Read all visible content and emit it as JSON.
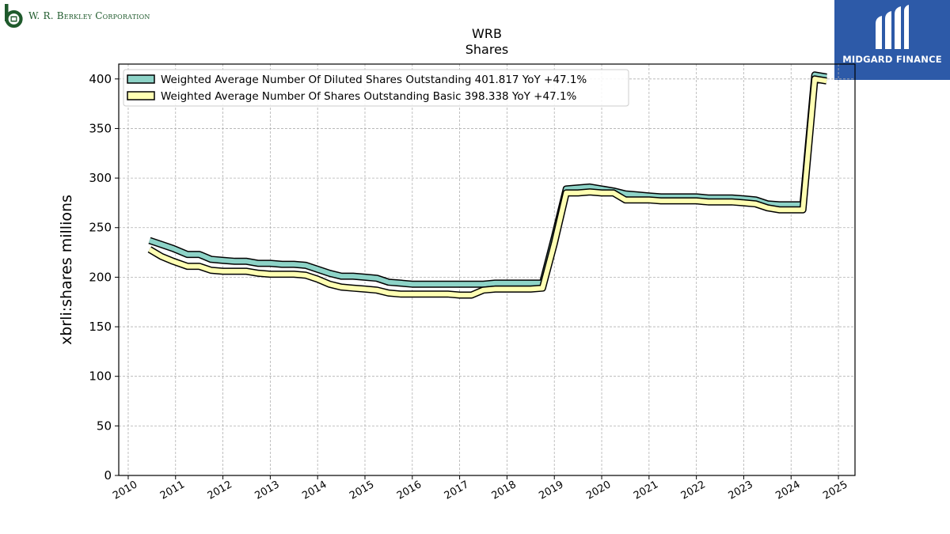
{
  "header": {
    "company_logo_text": "W. R. Berkley Corporation",
    "brand_text": "MIDGARD FINANCE"
  },
  "chart_data": {
    "type": "line",
    "title": "WRB",
    "subtitle": "Shares",
    "ylabel": "xbrli:shares millions",
    "xlabel": "",
    "ylim": [
      0,
      415
    ],
    "xlim": [
      2009.8,
      2025.35
    ],
    "grid": true,
    "legend_position": "top-left",
    "yticks": [
      0,
      50,
      100,
      150,
      200,
      250,
      300,
      350,
      400
    ],
    "xticks": [
      "2010",
      "2011",
      "2012",
      "2013",
      "2014",
      "2015",
      "2016",
      "2017",
      "2018",
      "2019",
      "2020",
      "2021",
      "2022",
      "2023",
      "2024",
      "2025"
    ],
    "series": [
      {
        "name": "Weighted Average Number Of Diluted Shares Outstanding",
        "legend_label": "Weighted Average Number Of Diluted Shares Outstanding  401.817 YoY +47.1%",
        "color": "#8dd3c7",
        "x": [
          2010.45,
          2010.7,
          2010.95,
          2011.25,
          2011.5,
          2011.75,
          2012.0,
          2012.25,
          2012.5,
          2012.75,
          2013.0,
          2013.25,
          2013.5,
          2013.75,
          2014.0,
          2014.25,
          2014.5,
          2014.75,
          2015.0,
          2015.25,
          2015.5,
          2015.75,
          2016.0,
          2016.25,
          2016.5,
          2016.75,
          2017.0,
          2017.25,
          2017.5,
          2017.75,
          2018.0,
          2018.25,
          2018.5,
          2018.75,
          2019.0,
          2019.25,
          2019.5,
          2019.75,
          2020.0,
          2020.25,
          2020.5,
          2020.75,
          2021.0,
          2021.25,
          2021.5,
          2021.75,
          2022.0,
          2022.25,
          2022.5,
          2022.75,
          2023.0,
          2023.25,
          2023.5,
          2023.75,
          2024.0,
          2024.25,
          2024.5,
          2024.75
        ],
        "y": [
          237,
          233,
          229,
          223,
          223,
          218,
          217,
          216,
          216,
          214,
          214,
          213,
          213,
          212,
          208,
          204,
          201,
          201,
          200,
          199,
          195,
          194,
          193,
          193,
          193,
          193,
          193,
          193,
          193,
          194,
          194,
          194,
          194,
          194,
          240,
          289,
          290,
          291,
          289,
          287,
          284,
          283,
          282,
          281,
          281,
          281,
          281,
          280,
          280,
          280,
          279,
          278,
          274,
          273,
          273,
          273,
          404,
          402
        ]
      },
      {
        "name": "Weighted Average Number Of Shares Outstanding Basic",
        "legend_label": "Weighted Average Number Of Shares Outstanding Basic  398.338 YoY +47.1%",
        "color": "#ffffb3",
        "x": [
          2010.45,
          2010.7,
          2010.95,
          2011.25,
          2011.5,
          2011.75,
          2012.0,
          2012.25,
          2012.5,
          2012.75,
          2013.0,
          2013.25,
          2013.5,
          2013.75,
          2014.0,
          2014.25,
          2014.5,
          2014.75,
          2015.0,
          2015.25,
          2015.5,
          2015.75,
          2016.0,
          2016.25,
          2016.5,
          2016.75,
          2017.0,
          2017.25,
          2017.5,
          2017.75,
          2018.0,
          2018.25,
          2018.5,
          2018.75,
          2019.0,
          2019.25,
          2019.5,
          2019.75,
          2020.0,
          2020.25,
          2020.5,
          2020.75,
          2021.0,
          2021.25,
          2021.5,
          2021.75,
          2022.0,
          2022.25,
          2022.5,
          2022.75,
          2023.0,
          2023.25,
          2023.5,
          2023.75,
          2024.0,
          2024.25,
          2024.5,
          2024.75
        ],
        "y": [
          228,
          221,
          216,
          211,
          211,
          207,
          206,
          206,
          206,
          204,
          203,
          203,
          203,
          202,
          198,
          193,
          190,
          189,
          188,
          187,
          184,
          183,
          183,
          183,
          183,
          183,
          182,
          182,
          187,
          188,
          188,
          188,
          188,
          189,
          234,
          285,
          285,
          286,
          285,
          285,
          278,
          278,
          278,
          277,
          277,
          277,
          277,
          276,
          276,
          276,
          275,
          274,
          270,
          268,
          268,
          268,
          400,
          398
        ]
      }
    ]
  }
}
